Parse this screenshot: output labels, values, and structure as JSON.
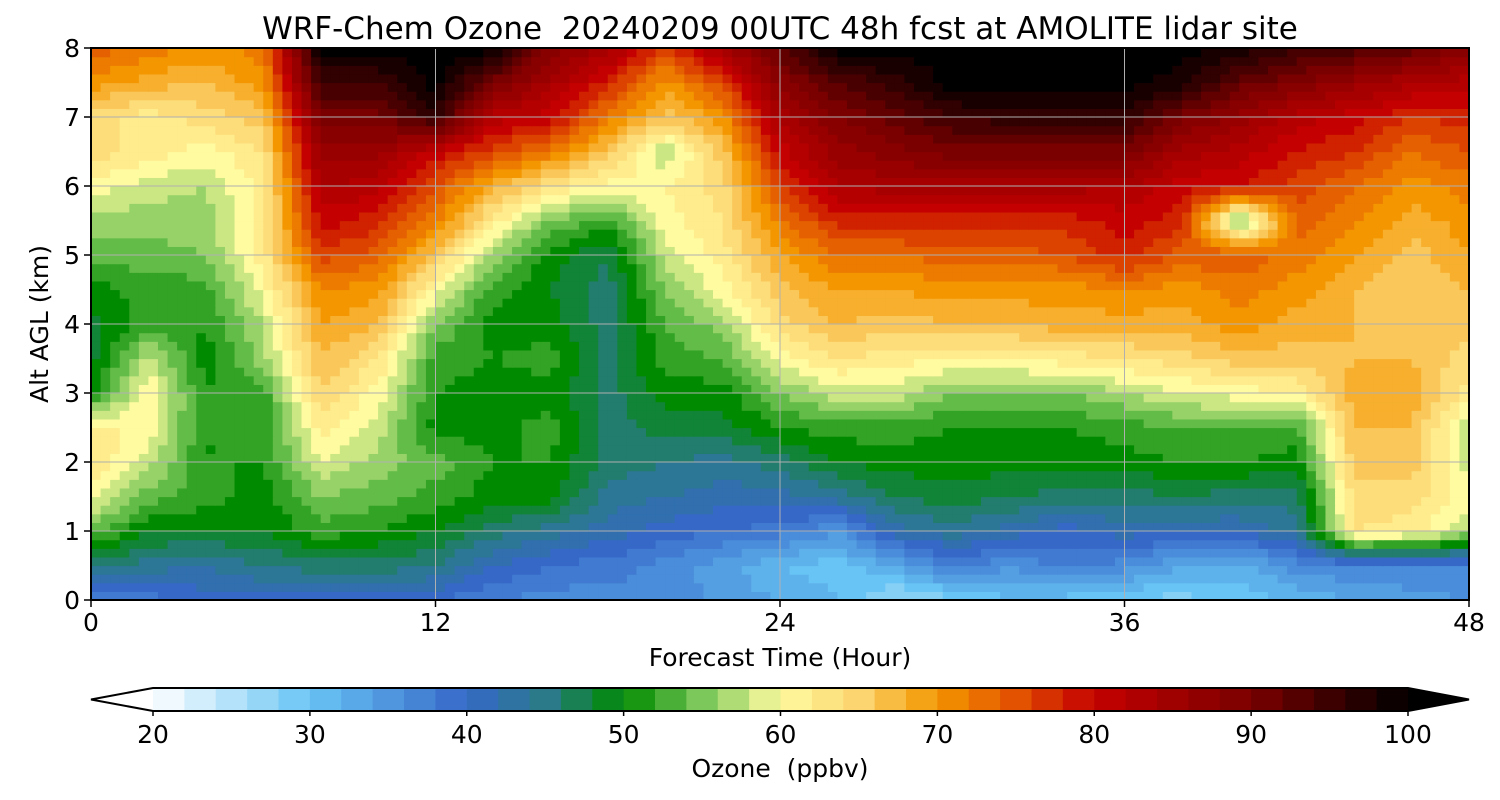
{
  "chart_data": {
    "type": "heatmap",
    "title": "WRF-Chem Ozone  20240209 00UTC 48h fcst at AMOLITE lidar site",
    "xlabel": "Forecast Time (Hour)",
    "ylabel": "Alt AGL (km)",
    "xlim": [
      0,
      48
    ],
    "ylim": [
      0,
      8
    ],
    "xticks": [
      0,
      12,
      24,
      36,
      48
    ],
    "yticks": [
      0,
      1,
      2,
      3,
      4,
      5,
      6,
      7,
      8
    ],
    "grid": true,
    "x": [
      0,
      2,
      4,
      6,
      8,
      10,
      12,
      14,
      16,
      18,
      20,
      22,
      24,
      26,
      28,
      30,
      32,
      34,
      36,
      38,
      40,
      42,
      44,
      46,
      48
    ],
    "y": [
      0,
      0.5,
      1,
      1.5,
      2,
      2.5,
      3,
      3.5,
      4,
      4.5,
      5,
      5.5,
      6,
      6.5,
      7,
      7.5,
      8
    ],
    "z_units": "ppbv",
    "z": [
      [
        36,
        38,
        40,
        40,
        40,
        40,
        39,
        37,
        36,
        36,
        37,
        34,
        33,
        31,
        26,
        28,
        31,
        30,
        29,
        28,
        30,
        31,
        33,
        34,
        35
      ],
      [
        46,
        44,
        43,
        45,
        46,
        46,
        45,
        41,
        39,
        38,
        36,
        34,
        31,
        30,
        33,
        38,
        35,
        38,
        36,
        33,
        32,
        36,
        37,
        37,
        37
      ],
      [
        54,
        49,
        49,
        49,
        52,
        51,
        49,
        46,
        44,
        42,
        40,
        39,
        38,
        35,
        42,
        44,
        42,
        40,
        42,
        41,
        41,
        44,
        63,
        62,
        57
      ],
      [
        60,
        54,
        52,
        50,
        55,
        54,
        52,
        50,
        50,
        44,
        43,
        42,
        42,
        44,
        47,
        48,
        47,
        46,
        46,
        47,
        46,
        46,
        64,
        64,
        60
      ],
      [
        63,
        58,
        51,
        51,
        59,
        56,
        54,
        51,
        51,
        46,
        45,
        44,
        46,
        49,
        50,
        50,
        50,
        50,
        50,
        51,
        51,
        50,
        66,
        66,
        58
      ],
      [
        62,
        60,
        51,
        51,
        62,
        58,
        50,
        50,
        52,
        46,
        48,
        48,
        51,
        52,
        52,
        51,
        51,
        51,
        52,
        53,
        53,
        52,
        67,
        67,
        57
      ],
      [
        50,
        61,
        51,
        52,
        65,
        60,
        51,
        50,
        50,
        46,
        50,
        50,
        55,
        58,
        58,
        55,
        55,
        55,
        57,
        59,
        60,
        61,
        68,
        68,
        62
      ],
      [
        48,
        58,
        50,
        56,
        67,
        63,
        52,
        51,
        52,
        46,
        52,
        53,
        60,
        63,
        62,
        61,
        61,
        62,
        63,
        64,
        66,
        66,
        67,
        67,
        64
      ],
      [
        48,
        52,
        51,
        57,
        69,
        67,
        55,
        50,
        50,
        46,
        53,
        56,
        64,
        67,
        66,
        67,
        67,
        68,
        68,
        68,
        70,
        68,
        67,
        66,
        66
      ],
      [
        50,
        52,
        52,
        60,
        71,
        70,
        60,
        52,
        49,
        46,
        55,
        60,
        66,
        69,
        69,
        70,
        70,
        70,
        71,
        70,
        72,
        70,
        67,
        65,
        67
      ],
      [
        54,
        54,
        55,
        62,
        76,
        74,
        66,
        56,
        50,
        47,
        58,
        62,
        69,
        73,
        73,
        74,
        74,
        75,
        78,
        74,
        75,
        72,
        69,
        66,
        69
      ],
      [
        56,
        56,
        56,
        62,
        80,
        78,
        72,
        62,
        55,
        52,
        60,
        63,
        72,
        78,
        78,
        78,
        78,
        78,
        80,
        78,
        54,
        74,
        71,
        68,
        70
      ],
      [
        60,
        58,
        57,
        62,
        83,
        82,
        75,
        68,
        63,
        60,
        61,
        64,
        76,
        83,
        84,
        84,
        84,
        84,
        83,
        80,
        79,
        76,
        73,
        70,
        72
      ],
      [
        64,
        62,
        60,
        63,
        86,
        86,
        80,
        76,
        72,
        66,
        57,
        66,
        80,
        86,
        88,
        90,
        90,
        90,
        90,
        84,
        82,
        79,
        77,
        73,
        75
      ],
      [
        64,
        62,
        64,
        66,
        90,
        90,
        96,
        82,
        80,
        72,
        66,
        70,
        84,
        89,
        92,
        95,
        96,
        96,
        96,
        90,
        86,
        82,
        80,
        77,
        78
      ],
      [
        70,
        68,
        67,
        70,
        95,
        95,
        100,
        90,
        84,
        78,
        70,
        76,
        88,
        93,
        96,
        100,
        100,
        100,
        100,
        98,
        92,
        89,
        86,
        83,
        82
      ],
      [
        74,
        72,
        70,
        72,
        100,
        100,
        100,
        100,
        88,
        84,
        76,
        84,
        92,
        100,
        100,
        100,
        100,
        100,
        100,
        100,
        98,
        95,
        94,
        92,
        88
      ]
    ],
    "colorbar": {
      "label": "Ozone  (ppbv)",
      "min": 20,
      "max": 100,
      "ticks": [
        20,
        30,
        40,
        50,
        60,
        70,
        80,
        90,
        100
      ],
      "extend": "both",
      "stops": [
        {
          "v": 20,
          "c": "#ffffff"
        },
        {
          "v": 30,
          "c": "#68c4f4"
        },
        {
          "v": 40,
          "c": "#3668c8"
        },
        {
          "v": 45,
          "c": "#2a7a8a"
        },
        {
          "v": 50,
          "c": "#008a00"
        },
        {
          "v": 55,
          "c": "#7cc85a"
        },
        {
          "v": 60,
          "c": "#fffba0"
        },
        {
          "v": 65,
          "c": "#fcd570"
        },
        {
          "v": 70,
          "c": "#f39600"
        },
        {
          "v": 75,
          "c": "#e25200"
        },
        {
          "v": 80,
          "c": "#c40000"
        },
        {
          "v": 90,
          "c": "#7a0000"
        },
        {
          "v": 100,
          "c": "#000000"
        }
      ]
    }
  }
}
